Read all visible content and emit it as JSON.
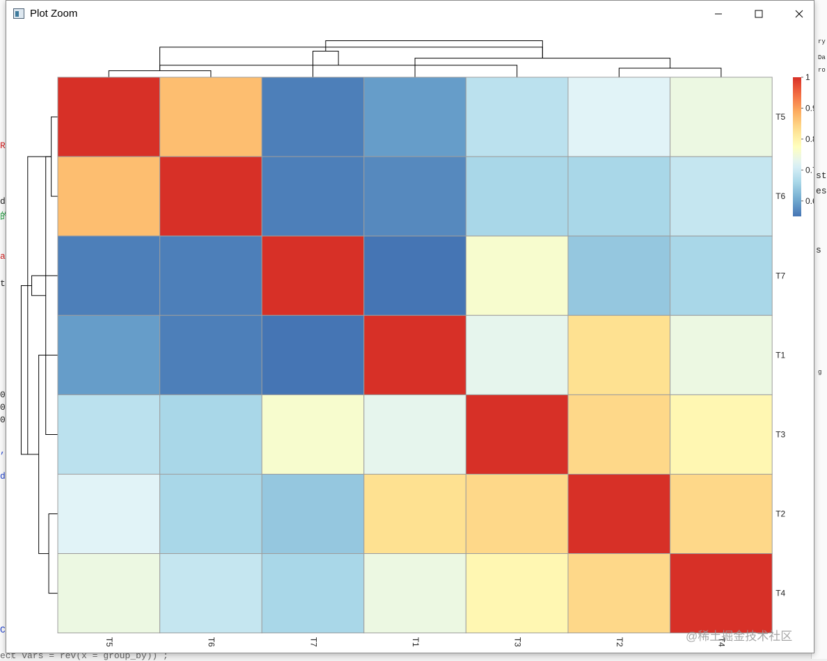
{
  "window": {
    "title": "Plot Zoom",
    "controls": {
      "minimize": "minimize",
      "maximize": "maximize",
      "close": "close"
    }
  },
  "background_fragments": {
    "left": [
      {
        "text": "R",
        "color": "#d21f1f"
      },
      {
        "text": "d",
        "color": "#222222"
      },
      {
        "text": "的",
        "color": "#1e9a3c"
      },
      {
        "text": "a",
        "color": "#d21f1f"
      },
      {
        "text": "t",
        "color": "#222222"
      },
      {
        "text": "0",
        "color": "#222222"
      },
      {
        "text": "0",
        "color": "#222222"
      },
      {
        "text": "0",
        "color": "#222222"
      },
      {
        "text": ",",
        "color": "#1f3fc9"
      },
      {
        "text": "d",
        "color": "#1f3fc9"
      },
      {
        "text": "C",
        "color": "#1f3fc9"
      }
    ],
    "right": [
      {
        "text": "ry",
        "color": "#222222"
      },
      {
        "text": "Da",
        "color": "#222222"
      },
      {
        "text": "ro",
        "color": "#222222"
      },
      {
        "text": "st",
        "color": "#222222"
      },
      {
        "text": "es",
        "color": "#222222"
      },
      {
        "text": "s",
        "color": "#222222"
      },
      {
        "text": "g",
        "color": "#222222"
      }
    ],
    "bottom_code": "ect  vars = rev(x = group_by)) ;"
  },
  "chart_data": {
    "type": "heatmap",
    "title": "",
    "rows": [
      "T5",
      "T6",
      "T7",
      "T1",
      "T3",
      "T2",
      "T4"
    ],
    "columns": [
      "T5",
      "T6",
      "T7",
      "T1",
      "T3",
      "T2",
      "T4"
    ],
    "values": [
      [
        1.0,
        0.87,
        0.56,
        0.59,
        0.68,
        0.72,
        0.74
      ],
      [
        0.87,
        1.0,
        0.56,
        0.57,
        0.66,
        0.66,
        0.69
      ],
      [
        0.56,
        0.56,
        1.0,
        0.55,
        0.76,
        0.64,
        0.66
      ],
      [
        0.59,
        0.56,
        0.55,
        1.0,
        0.73,
        0.83,
        0.74
      ],
      [
        0.68,
        0.66,
        0.76,
        0.73,
        1.0,
        0.84,
        0.79
      ],
      [
        0.72,
        0.66,
        0.64,
        0.83,
        0.84,
        1.0,
        0.84
      ],
      [
        0.74,
        0.69,
        0.66,
        0.74,
        0.79,
        0.84,
        1.0
      ]
    ],
    "legend": {
      "ticks": [
        "1",
        "0.9",
        "0.8",
        "0.7",
        "0.6"
      ],
      "tick_values": [
        1.0,
        0.9,
        0.8,
        0.7,
        0.6
      ],
      "min": 0.55,
      "max": 1.0,
      "position": "top-right"
    },
    "colorscale": [
      "#4575b4",
      "#74add1",
      "#abd9e9",
      "#e0f3f8",
      "#ffffbf",
      "#fee090",
      "#fdae61",
      "#f46d43",
      "#d73027"
    ],
    "col_dendrogram": [
      {
        "a": 0,
        "b": 1,
        "h": 0.13
      },
      {
        "a": 5,
        "b": 6,
        "h": 0.18
      },
      {
        "a": 4,
        "b": 7,
        "h": 0.24
      },
      {
        "a": 3,
        "b": 8,
        "h": 0.38
      },
      {
        "a": 2,
        "b": 9,
        "h": 0.52
      },
      {
        "a": 7,
        "b": 10,
        "h": 0.6
      },
      {
        "a": 10,
        "b": 11,
        "h": 0.73
      }
    ],
    "row_dendrogram": [
      {
        "a": 0,
        "b": 1,
        "h": 0.13
      },
      {
        "a": 5,
        "b": 6,
        "h": 0.18
      },
      {
        "a": 4,
        "b": 7,
        "h": 0.24
      },
      {
        "a": 3,
        "b": 8,
        "h": 0.38
      },
      {
        "a": 2,
        "b": 9,
        "h": 0.52
      },
      {
        "a": 7,
        "b": 10,
        "h": 0.6
      },
      {
        "a": 10,
        "b": 11,
        "h": 0.73
      }
    ]
  },
  "watermark": "@稀土掘金技术社区"
}
